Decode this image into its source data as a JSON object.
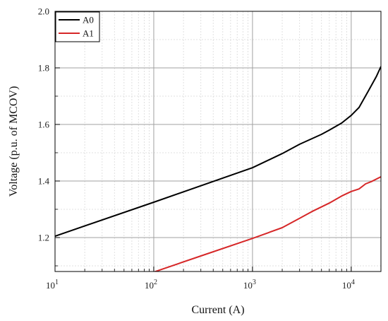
{
  "chart_data": {
    "type": "line",
    "title": "",
    "xlabel": "Current (A)",
    "ylabel": "Voltage (p.u. of MCOV)",
    "x_scale": "log",
    "xlim": [
      10,
      20000
    ],
    "ylim": [
      1.08,
      2.0
    ],
    "grid": true,
    "legend_position": "top-left",
    "x_ticks": [
      {
        "value": 10,
        "exp": "1"
      },
      {
        "value": 100,
        "exp": "2"
      },
      {
        "value": 1000,
        "exp": "3"
      },
      {
        "value": 10000,
        "exp": "4"
      }
    ],
    "x_tick_base": "10",
    "y_ticks": [
      {
        "value": 1.2,
        "label": "1.2"
      },
      {
        "value": 1.4,
        "label": "1.4"
      },
      {
        "value": 1.6,
        "label": "1.6"
      },
      {
        "value": 1.8,
        "label": "1.8"
      },
      {
        "value": 2.0,
        "label": "2.0"
      }
    ],
    "series": [
      {
        "name": "A0",
        "color": "#000000",
        "points": [
          [
            10,
            1.205
          ],
          [
            100,
            1.325
          ],
          [
            1000,
            1.447
          ],
          [
            2000,
            1.497
          ],
          [
            3000,
            1.53
          ],
          [
            5000,
            1.565
          ],
          [
            6000,
            1.58
          ],
          [
            8000,
            1.605
          ],
          [
            10000,
            1.632
          ],
          [
            12000,
            1.66
          ],
          [
            15000,
            1.72
          ],
          [
            18000,
            1.77
          ],
          [
            20000,
            1.805
          ]
        ]
      },
      {
        "name": "A1",
        "color": "#d62728",
        "points": [
          [
            100,
            1.078
          ],
          [
            300,
            1.135
          ],
          [
            1000,
            1.197
          ],
          [
            2000,
            1.235
          ],
          [
            3000,
            1.268
          ],
          [
            4000,
            1.292
          ],
          [
            6000,
            1.322
          ],
          [
            8000,
            1.347
          ],
          [
            10000,
            1.363
          ],
          [
            12000,
            1.372
          ],
          [
            14000,
            1.39
          ],
          [
            16000,
            1.398
          ],
          [
            20000,
            1.415
          ]
        ]
      }
    ]
  }
}
